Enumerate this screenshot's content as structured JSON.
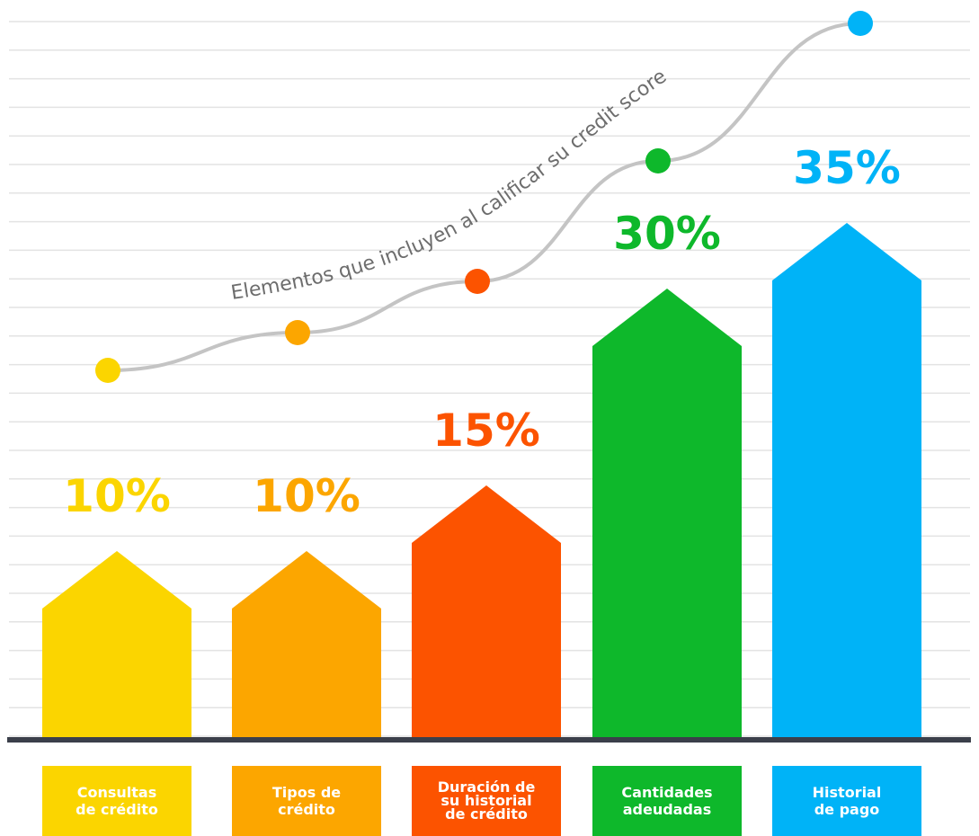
{
  "chart_data": {
    "type": "bar",
    "title": "",
    "xlabel": "",
    "ylabel": "",
    "ylim": [
      0,
      40
    ],
    "grid": true,
    "categories": [
      [
        "Consultas",
        "de crédito"
      ],
      [
        "Tipos de",
        "crédito"
      ],
      [
        "Duración de",
        "su historial",
        "de crédito"
      ],
      [
        "Cantidades",
        "adeudadas"
      ],
      [
        "Historial",
        "de pago"
      ]
    ],
    "values": [
      10,
      10,
      15,
      30,
      35
    ],
    "data_labels": [
      "10%",
      "10%",
      "15%",
      "30%",
      "35%"
    ],
    "colors": [
      "#fbd500",
      "#fca600",
      "#fc5300",
      "#0eb82b",
      "#00b3f7"
    ],
    "trend_line": {
      "label": "Elementos que incluyen al calificar su credit score",
      "color": "#c4c4c4"
    }
  }
}
